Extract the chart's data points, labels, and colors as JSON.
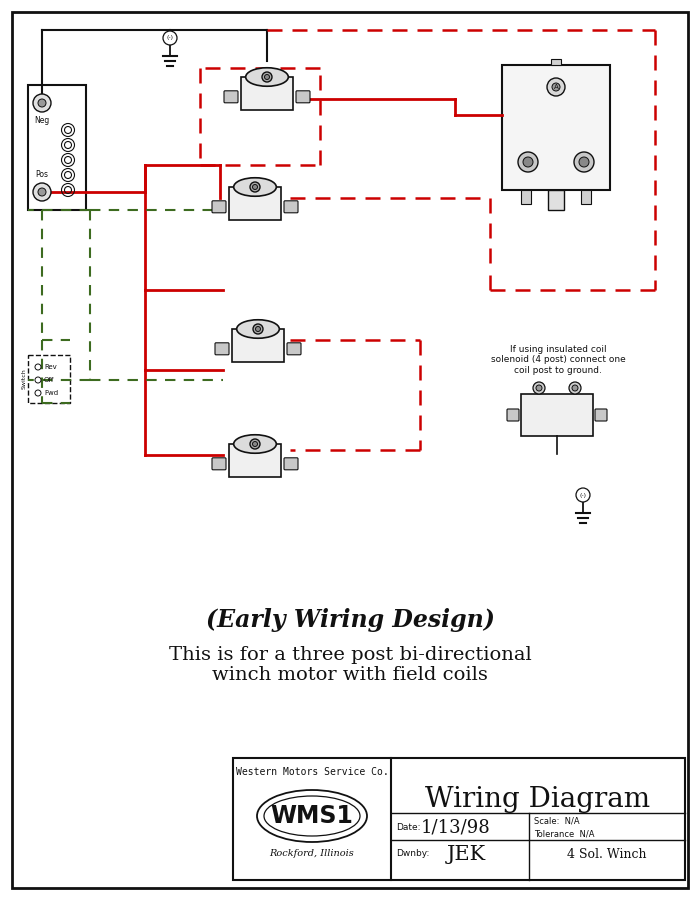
{
  "bg_color": "#ffffff",
  "title_italic": "(Early Wiring Design)",
  "title_normal": "This is for a three post bi-directional\nwinch motor with field coils",
  "tb_company": "Western Motors Service Co.",
  "tb_logo": "WMS1",
  "tb_city": "Rockford, Illinois",
  "tb_diagram": "Wiring Diagram",
  "tb_date_label": "Date:",
  "tb_date": "1/13/98",
  "tb_scale_label": "Scale:",
  "tb_scale": "N/A",
  "tb_tolerance_label": "Tolerance",
  "tb_tolerance": "N/A",
  "tb_drawnby_label": "Dwnby:",
  "tb_drawnby": "JEK",
  "tb_part": "4 Sol. Winch",
  "red_color": "#cc0000",
  "dark_green": "#3d6b20",
  "black": "#111111",
  "note_text": "If using insulated coil\nsolenoid (4 post) connect one\ncoil post to ground."
}
